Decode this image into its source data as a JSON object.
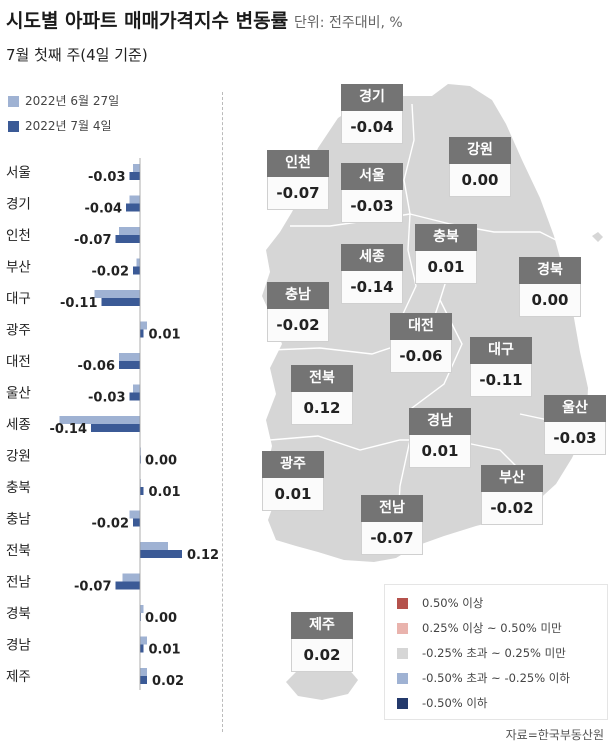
{
  "header": {
    "title": "시도별 아파트 매매가격지수 변동률",
    "unit": "단위: 전주대비, %",
    "subtitle": "7월 첫째 주(4일 기준)"
  },
  "chart_data": {
    "type": "bar",
    "orientation": "horizontal",
    "categories": [
      "서울",
      "경기",
      "인천",
      "부산",
      "대구",
      "광주",
      "대전",
      "울산",
      "세종",
      "강원",
      "충북",
      "충남",
      "전북",
      "전남",
      "경북",
      "경남",
      "제주"
    ],
    "series": [
      {
        "name": "2022년 6월 27일",
        "color": "#9fb2d3",
        "values": [
          -0.02,
          -0.03,
          -0.06,
          -0.01,
          -0.13,
          0.02,
          -0.06,
          -0.02,
          -0.23,
          0.0,
          0.0,
          -0.03,
          0.08,
          -0.05,
          0.01,
          0.02,
          0.02
        ]
      },
      {
        "name": "2022년 7월 4일",
        "color": "#3b5a96",
        "values": [
          -0.03,
          -0.04,
          -0.07,
          -0.02,
          -0.11,
          0.01,
          -0.06,
          -0.03,
          -0.14,
          0.0,
          0.01,
          -0.02,
          0.12,
          -0.07,
          0.0,
          0.01,
          0.02
        ]
      }
    ],
    "value_labels": [
      "-0.03",
      "-0.04",
      "-0.07",
      "-0.02",
      "-0.11",
      "0.01",
      "-0.06",
      "-0.03",
      "-0.14",
      "0.00",
      "0.01",
      "-0.02",
      "0.12",
      "-0.07",
      "0.00",
      "0.01",
      "0.02"
    ],
    "legend_position": "top-left",
    "grid": false
  },
  "map": {
    "regions": [
      {
        "name": "경기",
        "value": "-0.04"
      },
      {
        "name": "인천",
        "value": "-0.07"
      },
      {
        "name": "서울",
        "value": "-0.03"
      },
      {
        "name": "강원",
        "value": "0.00"
      },
      {
        "name": "충북",
        "value": "0.01"
      },
      {
        "name": "세종",
        "value": "-0.14"
      },
      {
        "name": "경북",
        "value": "0.00"
      },
      {
        "name": "충남",
        "value": "-0.02"
      },
      {
        "name": "대전",
        "value": "-0.06"
      },
      {
        "name": "대구",
        "value": "-0.11"
      },
      {
        "name": "전북",
        "value": "0.12"
      },
      {
        "name": "울산",
        "value": "-0.03"
      },
      {
        "name": "경남",
        "value": "0.01"
      },
      {
        "name": "광주",
        "value": "0.01"
      },
      {
        "name": "부산",
        "value": "-0.02"
      },
      {
        "name": "전남",
        "value": "-0.07"
      },
      {
        "name": "제주",
        "value": "0.02"
      }
    ],
    "legend": [
      {
        "label": "0.50% 이상",
        "color": "#b5524c"
      },
      {
        "label": "0.25% 이상 ~ 0.50% 미만",
        "color": "#e9b3ad"
      },
      {
        "label": "-0.25% 초과 ~ 0.25% 미만",
        "color": "#d6d6d6"
      },
      {
        "label": "-0.50% 초과 ~ -0.25% 이하",
        "color": "#9fb2d3"
      },
      {
        "label": "-0.50% 이하",
        "color": "#23396b"
      }
    ],
    "land_color": "#d6d6d6"
  },
  "source": "자료=한국부동산원"
}
